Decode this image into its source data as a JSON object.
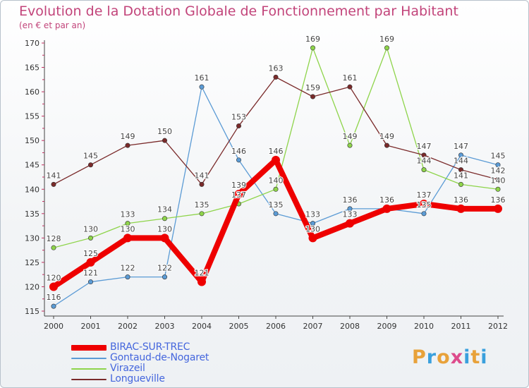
{
  "header": {
    "title": "Evolution de la Dotation Globale de Fonctionnement par Habitant",
    "subtitle": "(en € et par an)"
  },
  "logo": {
    "text": "Proxiti",
    "colors": [
      "#e8a23a",
      "#3aa0dd",
      "#e8a23a",
      "#dd4c8c",
      "#3aa0dd",
      "#e8a23a",
      "#3aa0dd"
    ]
  },
  "chart_data": {
    "type": "line",
    "title": "Evolution de la Dotation Globale de Fonctionnement par Habitant",
    "subtitle": "(en € et par an)",
    "x": [
      "2000",
      "2001",
      "2002",
      "2003",
      "2004",
      "2005",
      "2006",
      "2007",
      "2008",
      "2009",
      "2010",
      "2011",
      "2012"
    ],
    "ylim": [
      115,
      170
    ],
    "yticks": [
      115,
      120,
      125,
      130,
      135,
      140,
      145,
      150,
      155,
      160,
      165,
      170
    ],
    "grid": false,
    "legend_position": "bottom-left",
    "series": [
      {
        "name": "BIRAC-SUR-TREC",
        "color": "#ee0000",
        "emphasis": true,
        "values": [
          120,
          125,
          130,
          130,
          121,
          139,
          146,
          130,
          133,
          136,
          137,
          136,
          136
        ]
      },
      {
        "name": "Gontaud-de-Nogaret",
        "color": "#5b9bd5",
        "values": [
          116,
          121,
          122,
          122,
          161,
          146,
          135,
          133,
          136,
          136,
          135,
          147,
          145
        ]
      },
      {
        "name": "Virazeil",
        "color": "#8ed44a",
        "values": [
          128,
          130,
          133,
          134,
          135,
          137,
          140,
          169,
          149,
          169,
          144,
          141,
          140
        ]
      },
      {
        "name": "Longueville",
        "color": "#7a2a2a",
        "values": [
          141,
          145,
          149,
          150,
          141,
          153,
          163,
          159,
          161,
          149,
          147,
          144,
          142
        ]
      }
    ]
  }
}
